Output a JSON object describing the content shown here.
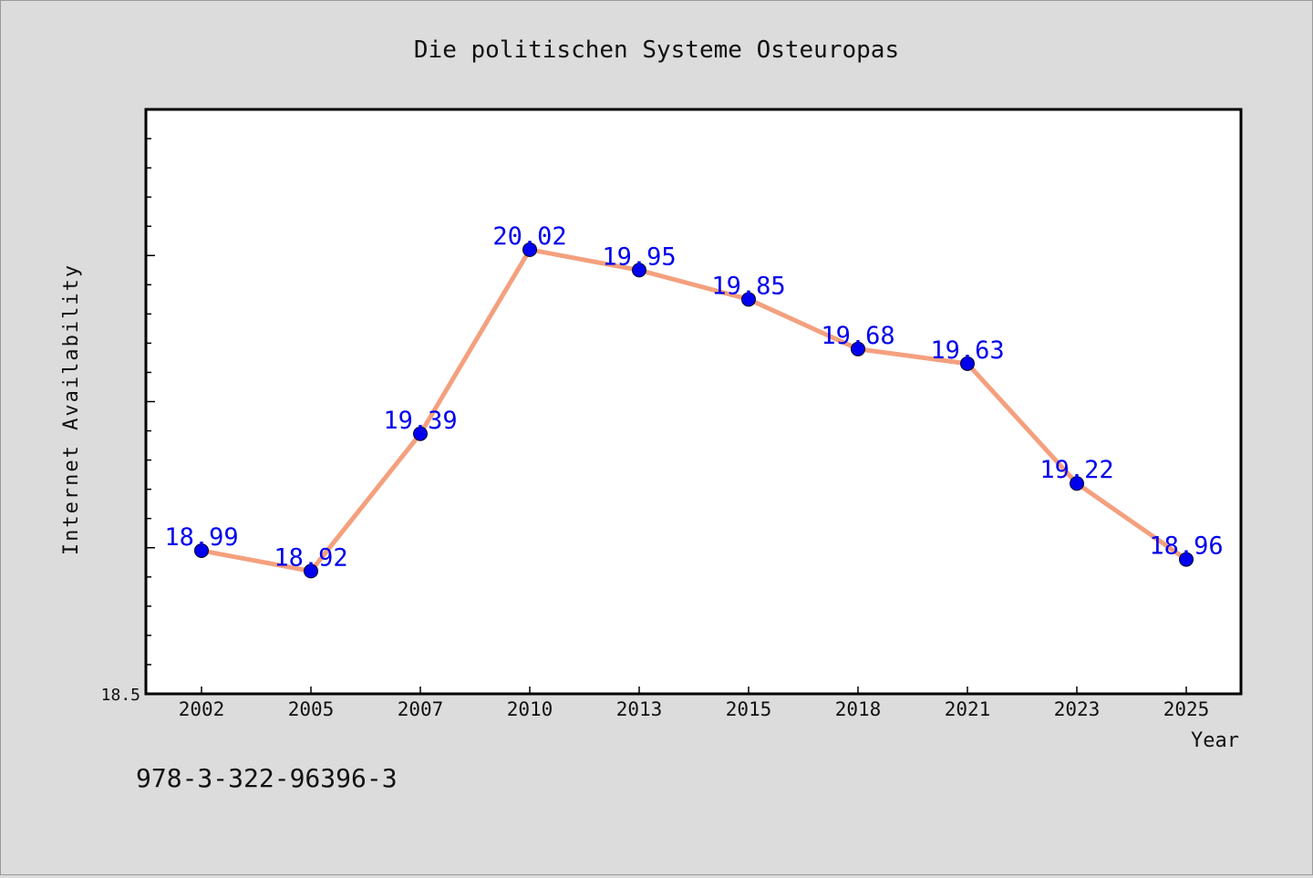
{
  "chart_data": {
    "type": "line",
    "title": "Die politischen Systeme Osteuropas",
    "xlabel": "Year",
    "ylabel": "Internet Availability",
    "categories": [
      "2002",
      "2005",
      "2007",
      "2010",
      "2013",
      "2015",
      "2018",
      "2021",
      "2023",
      "2025"
    ],
    "series": [
      {
        "values": [
          18.99,
          18.92,
          19.39,
          20.02,
          19.95,
          19.85,
          19.68,
          19.63,
          19.22,
          18.96
        ],
        "data_labels": [
          "18.99",
          "18.92",
          "19.39",
          "20.02",
          "19.95",
          "19.85",
          "19.68",
          "19.63",
          "19.22",
          "18.96"
        ],
        "line_color": "#f4a07e",
        "marker_color": "#0000ee",
        "label_color": "#0000ee"
      }
    ],
    "ylim": [
      18.5,
      20.5
    ],
    "y_tick_label": "18.5",
    "grid": false,
    "legend": "none"
  },
  "footer": {
    "isbn": "978-3-322-96396-3"
  },
  "colors": {
    "background": "#dcdcdc",
    "plot_background": "#ffffff",
    "axis": "#000000"
  }
}
